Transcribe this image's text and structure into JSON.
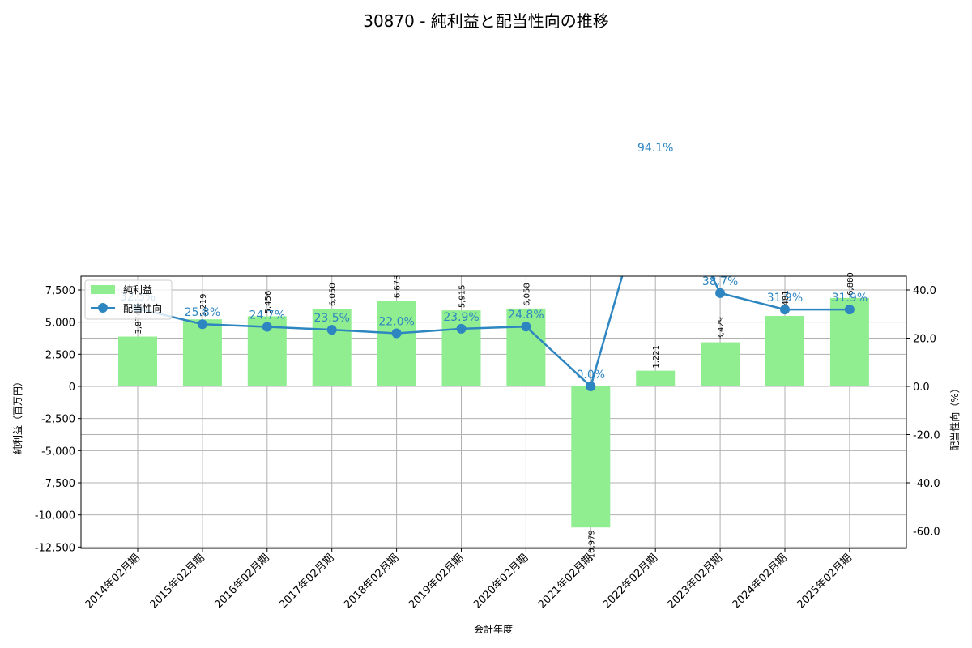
{
  "chart_data": {
    "type": "bar+line",
    "title": "30870 - 純利益と配当性向の推移",
    "xlabel": "会計年度",
    "ylabel": "純利益（百万円）",
    "ylabel_right": "配当性向（%）",
    "categories": [
      "2014年02月期",
      "2015年02月期",
      "2016年02月期",
      "2017年02月期",
      "2018年02月期",
      "2019年02月期",
      "2020年02月期",
      "2021年02月期",
      "2022年02月期",
      "2023年02月期",
      "2024年02月期",
      "2025年02月期"
    ],
    "series": [
      {
        "name": "純利益",
        "type": "bar",
        "axis": "left",
        "color": "#90ee90",
        "values": [
          3874,
          5219,
          5456,
          6050,
          6673,
          5915,
          6058,
          -10979,
          1221,
          3429,
          5481,
          6880
        ],
        "labels": [
          "3,874",
          "5,219",
          "5,456",
          "6,050",
          "6,673",
          "5,915",
          "6,058",
          "-10,979",
          "1,221",
          "3,429",
          "5,481",
          "6,880"
        ]
      },
      {
        "name": "配当性向",
        "type": "line",
        "axis": "right",
        "color": "#2e86c1",
        "values": [
          32.3,
          25.8,
          24.7,
          23.5,
          22.0,
          23.9,
          24.8,
          0.0,
          94.1,
          38.7,
          31.9,
          31.9
        ],
        "labels": [
          "32.3%",
          "25.8%",
          "24.7%",
          "23.5%",
          "22.0%",
          "23.9%",
          "24.8%",
          "0.0%",
          "94.1%",
          "38.7%",
          "31.9%",
          "31.9%"
        ]
      }
    ],
    "ylim": [
      -12800,
      8700
    ],
    "ylim_right": [
      -68,
      46
    ],
    "yticks": [
      -12500,
      -10000,
      -7500,
      -5000,
      -2500,
      0,
      2500,
      5000,
      7500
    ],
    "yticks_labels": [
      "-12,500",
      "-10,000",
      "-7,500",
      "-5,000",
      "-2,500",
      "0",
      "2,500",
      "5,000",
      "7,500"
    ],
    "yticks_right": [
      -60,
      -40,
      -20,
      0,
      20,
      40
    ],
    "yticks_right_labels": [
      "-60.0",
      "-40.0",
      "-20.0",
      "0.0",
      "20.0",
      "40.0"
    ],
    "grid": true,
    "legend_position": "upper left",
    "legend": [
      "純利益",
      "配当性向"
    ]
  }
}
